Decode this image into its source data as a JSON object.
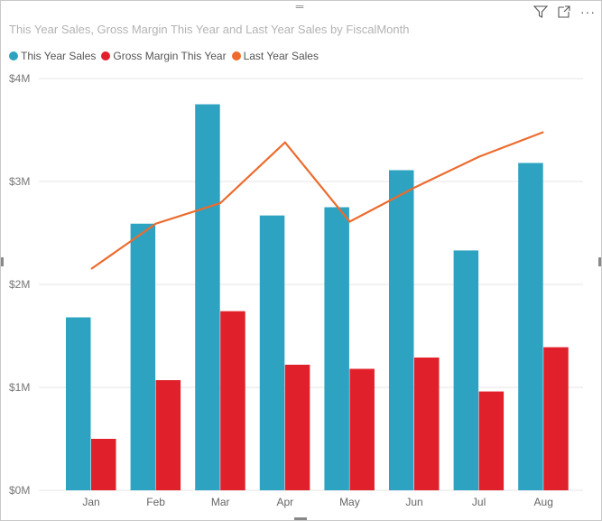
{
  "visual": {
    "title": "This Year Sales, Gross Margin This Year and Last Year Sales by FiscalMonth",
    "icons": [
      "filter-icon",
      "focus-mode-icon",
      "more-options-icon"
    ]
  },
  "chart_data": {
    "type": "bar",
    "title": "This Year Sales, Gross Margin This Year and Last Year Sales by FiscalMonth",
    "categories": [
      "Jan",
      "Feb",
      "Mar",
      "Apr",
      "May",
      "Jun",
      "Jul",
      "Aug"
    ],
    "series": [
      {
        "name": "This Year Sales",
        "kind": "bar",
        "color": "#2ea3c1",
        "values": [
          1.68,
          2.59,
          3.75,
          2.67,
          2.75,
          3.11,
          2.33,
          3.18
        ]
      },
      {
        "name": "Gross Margin This Year",
        "kind": "bar",
        "color": "#e0202a",
        "values": [
          0.5,
          1.07,
          1.74,
          1.22,
          1.18,
          1.29,
          0.96,
          1.39
        ]
      },
      {
        "name": "Last Year Sales",
        "kind": "line",
        "color": "#ec6b2d",
        "values": [
          2.15,
          2.59,
          2.79,
          3.38,
          2.61,
          2.94,
          3.24,
          3.48
        ]
      }
    ],
    "ylim": [
      0,
      4
    ],
    "yticks": [
      0,
      1,
      2,
      3,
      4
    ],
    "ytick_labels": [
      "$0M",
      "$1M",
      "$2M",
      "$3M",
      "$4M"
    ],
    "units": "millions USD",
    "grid": true,
    "legend": "top-left"
  }
}
